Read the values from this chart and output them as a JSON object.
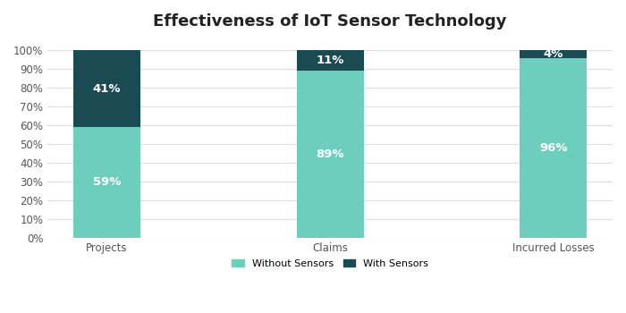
{
  "title": "Effectiveness of IoT Sensor Technology",
  "categories": [
    "Projects",
    "Claims",
    "Incurred Losses"
  ],
  "without_sensors": [
    59,
    89,
    96
  ],
  "with_sensors": [
    41,
    11,
    4
  ],
  "color_without": "#6ecebe",
  "color_with": "#1a4a52",
  "label_without": "Without Sensors",
  "label_with": "With Sensors",
  "yticks": [
    0,
    10,
    20,
    30,
    40,
    50,
    60,
    70,
    80,
    90,
    100
  ],
  "ytick_labels": [
    "0%",
    "10%",
    "20%",
    "30%",
    "40%",
    "50%",
    "60%",
    "70%",
    "80%",
    "90%",
    "100%"
  ],
  "bar_width": 0.3,
  "background_color": "#ffffff",
  "title_fontsize": 13,
  "label_fontsize": 9.5,
  "tick_fontsize": 8.5,
  "legend_fontsize": 8
}
